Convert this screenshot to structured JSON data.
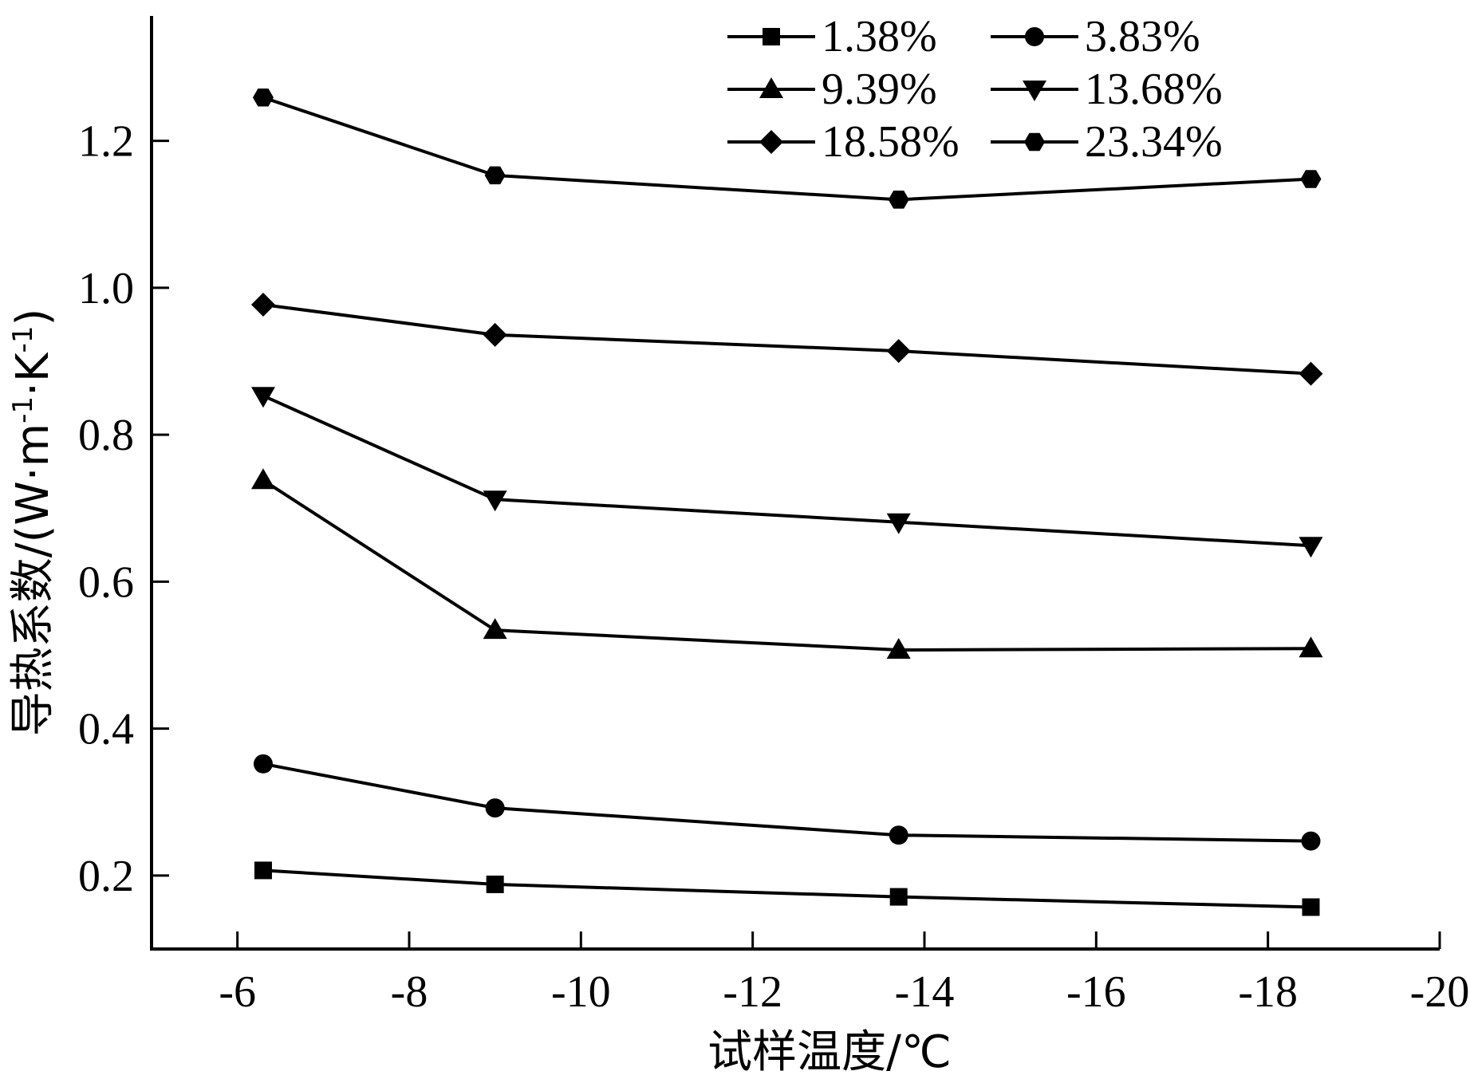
{
  "chart_data": {
    "type": "line",
    "xlabel": "试样温度/℃",
    "ylabel_main": "导热系数/(W·m",
    "ylabel_sup1": "-1",
    "ylabel_mid": "·K",
    "ylabel_sup2": "-1",
    "ylabel_end": ")",
    "xlim": [
      -5,
      -20
    ],
    "ylim": [
      0.1,
      1.37
    ],
    "xticks": [
      -6,
      -8,
      -10,
      -12,
      -14,
      -16,
      -18,
      -20
    ],
    "xtick_labels": [
      "-6",
      "-8",
      "-10",
      "-12",
      "-14",
      "-16",
      "-18",
      "-20"
    ],
    "yticks": [
      0.2,
      0.4,
      0.6,
      0.8,
      1.0,
      1.2
    ],
    "ytick_labels": [
      "0.2",
      "0.4",
      "0.6",
      "0.8",
      "1.0",
      "1.2"
    ],
    "x": [
      -6.3,
      -9.0,
      -13.7,
      -18.5
    ],
    "series": [
      {
        "name": "1.38%",
        "marker": "square",
        "values": [
          0.207,
          0.188,
          0.171,
          0.157
        ]
      },
      {
        "name": "3.83%",
        "marker": "circle",
        "values": [
          0.352,
          0.292,
          0.255,
          0.247
        ]
      },
      {
        "name": "9.39%",
        "marker": "triangle-up",
        "values": [
          0.738,
          0.534,
          0.507,
          0.509
        ]
      },
      {
        "name": "13.68%",
        "marker": "triangle-down",
        "values": [
          0.853,
          0.712,
          0.681,
          0.649
        ]
      },
      {
        "name": "18.58%",
        "marker": "diamond",
        "values": [
          0.977,
          0.936,
          0.914,
          0.883
        ]
      },
      {
        "name": "23.34%",
        "marker": "hexagon",
        "values": [
          1.259,
          1.153,
          1.12,
          1.148
        ]
      }
    ],
    "grid": false,
    "legend_position": "top-right"
  }
}
